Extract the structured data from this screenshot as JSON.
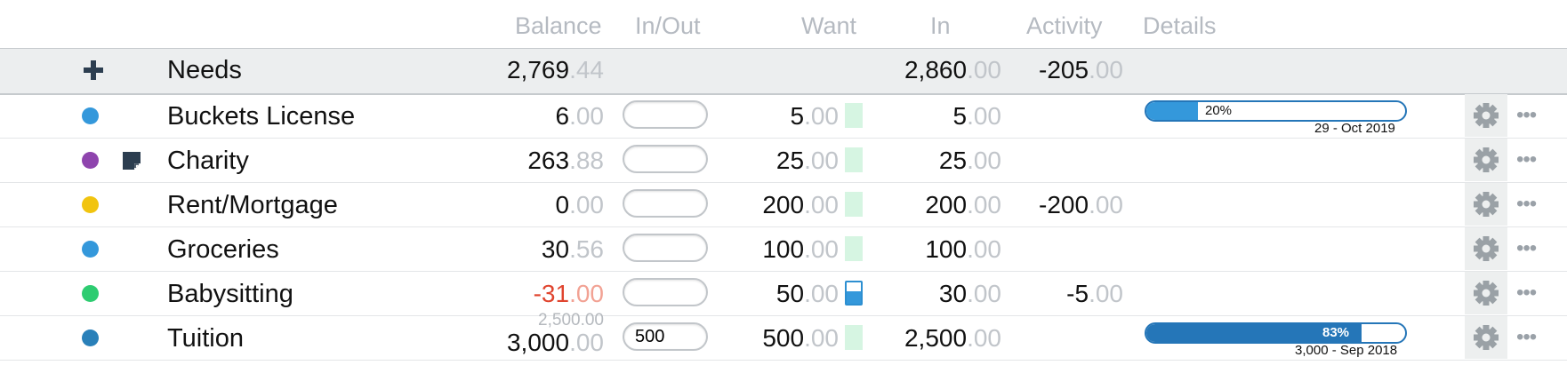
{
  "header": {
    "balance": "Balance",
    "inout": "In/Out",
    "want": "Want",
    "in": "In",
    "activity": "Activity",
    "details": "Details"
  },
  "group": {
    "add_icon": "plus-icon",
    "name": "Needs",
    "balance_main": "2,769",
    "balance_cents": ".44",
    "in_main": "2,860",
    "in_cents": ".00",
    "activity_main": "-205",
    "activity_cents": ".00"
  },
  "rows": [
    {
      "name": "Buckets License",
      "color": "#3498db",
      "balance_main": "6",
      "balance_cents": ".00",
      "inout": "",
      "want_main": "5",
      "want_cents": ".00",
      "in_main": "5",
      "in_cents": ".00",
      "goal_pct_label": "20%",
      "goal_pct": 20,
      "goal_date": "29 - Oct 2019"
    },
    {
      "name": "Charity",
      "color": "#8e44ad",
      "note_icon": "note-icon",
      "balance_main": "263",
      "balance_cents": ".88",
      "inout": "",
      "want_main": "25",
      "want_cents": ".00",
      "in_main": "25",
      "in_cents": ".00"
    },
    {
      "name": "Rent/Mortgage",
      "color": "#f1c40f",
      "balance_main": "0",
      "balance_cents": ".00",
      "inout": "",
      "want_main": "200",
      "want_cents": ".00",
      "in_main": "200",
      "in_cents": ".00",
      "activity_main": "-200",
      "activity_cents": ".00"
    },
    {
      "name": "Groceries",
      "color": "#3498db",
      "balance_main": "30",
      "balance_cents": ".56",
      "inout": "",
      "want_main": "100",
      "want_cents": ".00",
      "in_main": "100",
      "in_cents": ".00"
    },
    {
      "name": "Babysitting",
      "color": "#2ecc71",
      "balance_main": "-31",
      "balance_cents": ".00",
      "inout": "",
      "want_main": "50",
      "want_cents": ".00",
      "want_fill": 0.6,
      "in_main": "30",
      "in_cents": ".00",
      "activity_main": "-5",
      "activity_cents": ".00"
    },
    {
      "name": "Tuition",
      "color": "#2980b9",
      "balance_prev": "2,500.00",
      "balance_main": "3,000",
      "balance_cents": ".00",
      "inout": "500",
      "want_main": "500",
      "want_cents": ".00",
      "in_main": "2,500",
      "in_cents": ".00",
      "goal_pct_label": "83%",
      "goal_pct": 83,
      "goal_date": "3,000 - Sep 2018"
    }
  ],
  "icons": {
    "gear": "gear-icon",
    "more": "more-icon"
  },
  "more_glyph": "•••"
}
